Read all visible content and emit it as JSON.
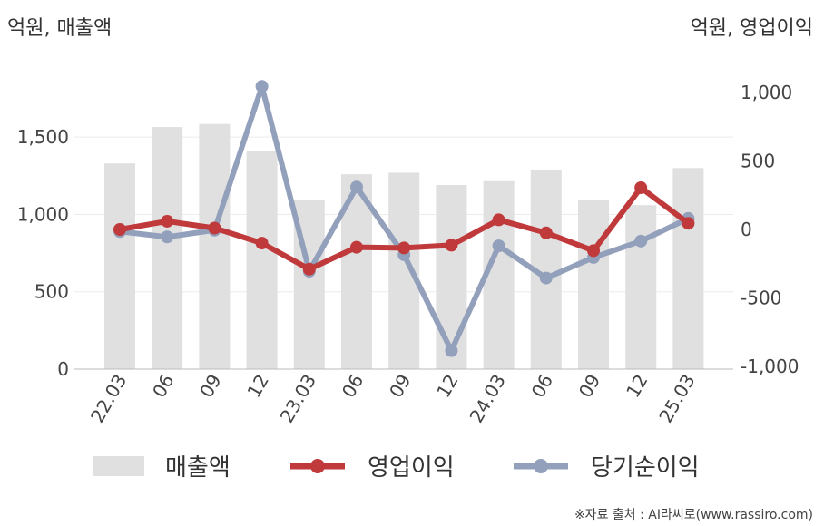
{
  "chart_data": {
    "type": "bar+line",
    "categories": [
      "22.03",
      "06",
      "09",
      "12",
      "23.03",
      "06",
      "09",
      "12",
      "24.03",
      "06",
      "09",
      "12",
      "25.03"
    ],
    "left_axis_label": "억원, 매출액",
    "right_axis_label": "억원, 영업이익",
    "left_ticks": [
      "0",
      "500",
      "1,000",
      "1,500"
    ],
    "right_ticks": [
      "1,000",
      "500",
      "0",
      "-500",
      "-1,000"
    ],
    "left_ylim": [
      0,
      1800
    ],
    "right_ylim": [
      -1000,
      1000
    ],
    "series": [
      {
        "name": "매출액",
        "type": "bar",
        "axis": "left",
        "color": "#e0e0e0",
        "values": [
          1330,
          1565,
          1585,
          1410,
          1095,
          1260,
          1270,
          1190,
          1215,
          1290,
          1090,
          1060,
          1300
        ]
      },
      {
        "name": "영업이익",
        "type": "line",
        "axis": "right",
        "color": "#c0393b",
        "values": [
          0,
          60,
          10,
          -100,
          -290,
          -130,
          -135,
          -115,
          70,
          -25,
          -155,
          305,
          45
        ]
      },
      {
        "name": "당기순이익",
        "type": "line",
        "axis": "right",
        "color": "#93a0bb",
        "values": [
          -15,
          -55,
          -5,
          1045,
          -305,
          310,
          -185,
          -885,
          -120,
          -355,
          -205,
          -85,
          80
        ]
      }
    ],
    "legend_position": "bottom"
  },
  "source": "※자료 출처 : AI라씨로(www.rassiro.com)"
}
